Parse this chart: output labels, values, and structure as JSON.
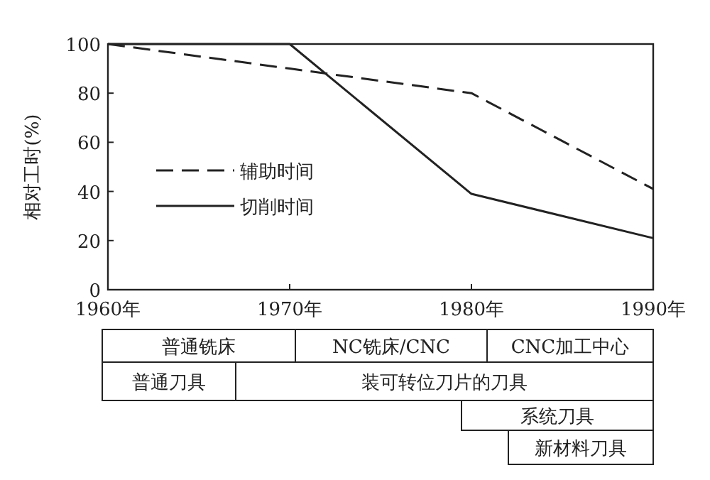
{
  "chart_data": {
    "type": "line",
    "ylabel": "相对工时(%)",
    "categories": [
      "1960年",
      "1970年",
      "1980年",
      "1990年"
    ],
    "series": [
      {
        "name": "辅助时间",
        "color": "#222222",
        "line_style": "dashed",
        "values": [
          100,
          90,
          80,
          41
        ]
      },
      {
        "name": "切削时间",
        "color": "#222222",
        "line_style": "solid",
        "values": [
          100,
          100,
          39,
          21
        ]
      }
    ],
    "ylim": [
      0,
      100
    ],
    "yticks": [
      0,
      20,
      40,
      60,
      80,
      100
    ],
    "legend": "left",
    "grid": false,
    "marker": "none",
    "annotations": [
      "普通铣床",
      "NC铣床/CNC",
      "CNC加工中心",
      "普通刀具",
      "装可转位刀片的刀具",
      "系统刀具",
      "新材料刀具"
    ]
  }
}
